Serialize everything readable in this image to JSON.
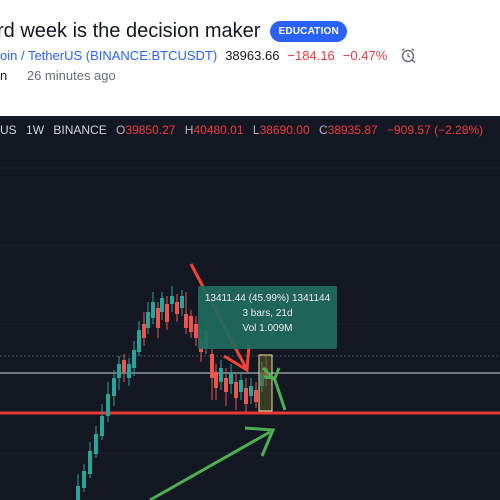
{
  "header": {
    "title": "rd week is the decision maker",
    "badge": "EDUCATION",
    "symbol_link": "oin / TetherUS (BINANCE:BTCUSDT)",
    "price": "38963.66",
    "change": "−184.16",
    "change_pct": "−0.47%",
    "author": "n",
    "posted": "26 minutes ago"
  },
  "chart_legend": {
    "symbol": "US",
    "interval": "1W",
    "exchange": "BINANCE",
    "open_label": "O",
    "open": "39850.27",
    "high_label": "H",
    "high": "40480.01",
    "low_label": "L",
    "low": "38690.00",
    "close_label": "C",
    "close": "38935.87",
    "change": "−909.57 (−2.28%)"
  },
  "measure_tooltip": {
    "line1": "13411.44 (45.99%) 1341144",
    "line2": "3 bars, 21d",
    "line3": "Vol 1.009M"
  },
  "colors": {
    "up": "#26a69a",
    "down": "#ef5350",
    "support_line": "#e53935",
    "arrow_red": "#f44336",
    "arrow_green": "#4caf50",
    "accent": "#2962ff"
  },
  "icons": {
    "alert": "alarm-clock-icon"
  }
}
